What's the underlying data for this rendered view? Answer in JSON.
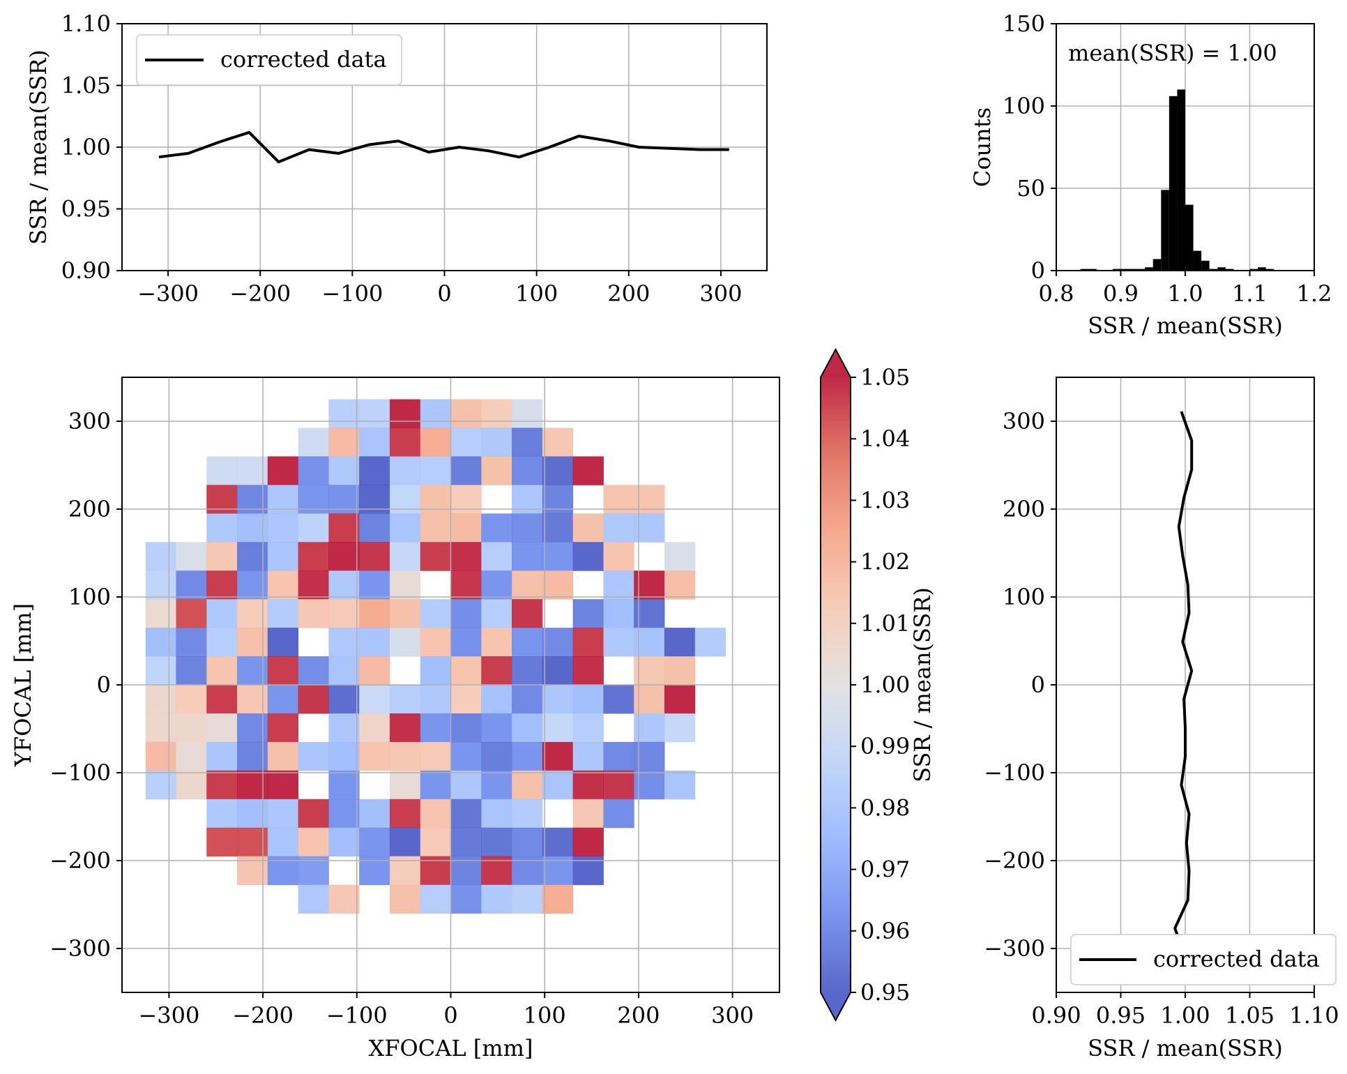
{
  "chart_data": [
    {
      "type": "line",
      "panel": "top-left",
      "xlim": [
        -350,
        350
      ],
      "ylim": [
        0.9,
        1.1
      ],
      "xticks": [
        -300,
        -200,
        -100,
        0,
        100,
        200,
        300
      ],
      "xtick_labels": [
        "−300",
        "−200",
        "−100",
        "0",
        "100",
        "200",
        "300"
      ],
      "yticks": [
        0.9,
        0.95,
        1.0,
        1.05,
        1.1
      ],
      "ytick_labels": [
        "0.90",
        "0.95",
        "1.00",
        "1.05",
        "1.10"
      ],
      "xlabel": "",
      "ylabel": "SSR / mean(SSR)",
      "grid": true,
      "legend": {
        "position": "upper-left",
        "entries": [
          "corrected data"
        ]
      },
      "series": [
        {
          "name": "corrected data",
          "color": "#000000",
          "x": [
            -310,
            -278,
            -245,
            -212,
            -180,
            -147,
            -115,
            -82,
            -50,
            -17,
            16,
            48,
            81,
            114,
            146,
            179,
            211,
            244,
            277,
            309
          ],
          "y": [
            0.992,
            0.995,
            1.004,
            1.012,
            0.988,
            0.998,
            0.995,
            1.002,
            1.005,
            0.996,
            1.0,
            0.997,
            0.992,
            1.0,
            1.009,
            1.005,
            1.0,
            0.999,
            0.998,
            0.998
          ]
        }
      ]
    },
    {
      "type": "bar",
      "panel": "top-right",
      "xlim": [
        0.8,
        1.2
      ],
      "ylim": [
        0,
        150
      ],
      "xticks": [
        0.8,
        0.9,
        1.0,
        1.1,
        1.2
      ],
      "xtick_labels": [
        "0.8",
        "0.9",
        "1.0",
        "1.1",
        "1.2"
      ],
      "yticks": [
        0,
        50,
        100,
        150
      ],
      "ytick_labels": [
        "0",
        "50",
        "100",
        "150"
      ],
      "xlabel": "SSR / mean(SSR)",
      "ylabel": "Counts",
      "grid": true,
      "annotation": "mean(SSR) = 1.00",
      "bar_color": "#000000",
      "bin_width": 0.0125,
      "bin_starts": [
        0.8375,
        0.85,
        0.8625,
        0.875,
        0.8875,
        0.9,
        0.9125,
        0.925,
        0.9375,
        0.95,
        0.9625,
        0.975,
        0.9875,
        1.0,
        1.0125,
        1.025,
        1.0375,
        1.05,
        1.0625,
        1.075,
        1.0875,
        1.1,
        1.1125,
        1.125,
        1.1375
      ],
      "counts": [
        1,
        1,
        0,
        0,
        1,
        1,
        1,
        1,
        2,
        7,
        49,
        106,
        110,
        40,
        12,
        6,
        1,
        2,
        1,
        0,
        0,
        1,
        2,
        1,
        0
      ]
    },
    {
      "type": "heatmap",
      "panel": "bottom-left",
      "xlim": [
        -350,
        350
      ],
      "ylim": [
        -350,
        350
      ],
      "xticks": [
        -300,
        -200,
        -100,
        0,
        100,
        200,
        300
      ],
      "xtick_labels": [
        "−300",
        "−200",
        "−100",
        "0",
        "100",
        "200",
        "300"
      ],
      "yticks": [
        -300,
        -200,
        -100,
        0,
        100,
        200,
        300
      ],
      "ytick_labels": [
        "−300",
        "−200",
        "−100",
        "0",
        "100",
        "200",
        "300"
      ],
      "xlabel": "XFOCAL [mm]",
      "ylabel": "YFOCAL [mm]",
      "grid": true,
      "colormap": "coolwarm",
      "vmin": 0.95,
      "vmax": 1.05,
      "cell_size_mm": 32.5,
      "x_origin_mm": -325,
      "y_top_mm": 325,
      "rows": [
        "......AB~=_[K.......",
        ".....Ha<{e@>'].....",
        "..HH~,>!?@'_*#~..",
        "..{)=-,!D_[.=(.^^..",
        "..>:=B{(<_a-+&_>=..",
        "AL]'<{~|E{}@--!^.L.",
        "C*{-^}>-S.|-_a.=~`",
        "Tx>[?]\\f_?+@|.(:$",
        ":*@_!.><K^,^-*{>;!?",
        "C(^-{+<a.:^{&!}.]_",
        "V[{]-|#F@>[;*=:$_~",
        "VVS*{.=W}-(-:E@.=E",
        "aS<(_<:^]\\-'-~=*)",
        "AV{~~.-.S-=-_<}|+<",
        "..>:={-:{^%<?.]+..",
        "..xx<^:-!\\&%*#~..",
        "...^-/.-[{(|*-!....",
        ".....>]._@,>Ae....."
      ],
      "colorbar": {
        "label": "SSR / mean(SSR)",
        "ticks": [
          0.95,
          0.96,
          0.97,
          0.98,
          0.99,
          1.0,
          1.01,
          1.02,
          1.03,
          1.04,
          1.05
        ],
        "tick_labels": [
          "0.95",
          "0.96",
          "0.97",
          "0.98",
          "0.99",
          "1.00",
          "1.01",
          "1.02",
          "1.03",
          "1.04",
          "1.05"
        ],
        "extend": "both"
      }
    },
    {
      "type": "line",
      "panel": "bottom-right",
      "xlim": [
        0.9,
        1.1
      ],
      "ylim": [
        -350,
        350
      ],
      "xticks": [
        0.9,
        0.95,
        1.0,
        1.05,
        1.1
      ],
      "xtick_labels": [
        "0.90",
        "0.95",
        "1.00",
        "1.05",
        "1.10"
      ],
      "yticks": [
        -300,
        -200,
        -100,
        0,
        100,
        200,
        300
      ],
      "ytick_labels": [
        "−300",
        "−200",
        "−100",
        "0",
        "100",
        "200",
        "300"
      ],
      "xlabel": "SSR / mean(SSR)",
      "ylabel": "",
      "grid": true,
      "legend": {
        "position": "lower-right",
        "entries": [
          "corrected data"
        ]
      },
      "series": [
        {
          "name": "corrected data",
          "color": "#000000",
          "x": [
            0.997,
            1.005,
            1.005,
            0.999,
            0.995,
            0.998,
            1.002,
            1.003,
            0.998,
            1.005,
            0.999,
            1.0,
            1.0,
            0.997,
            1.003,
            1.001,
            1.003,
            1.002,
            0.992,
            1.0
          ],
          "y": [
            311,
            278,
            245,
            213,
            180,
            147,
            114,
            82,
            49,
            16,
            -16,
            -49,
            -82,
            -114,
            -147,
            -180,
            -212,
            -245,
            -277,
            -310
          ]
        }
      ]
    }
  ]
}
